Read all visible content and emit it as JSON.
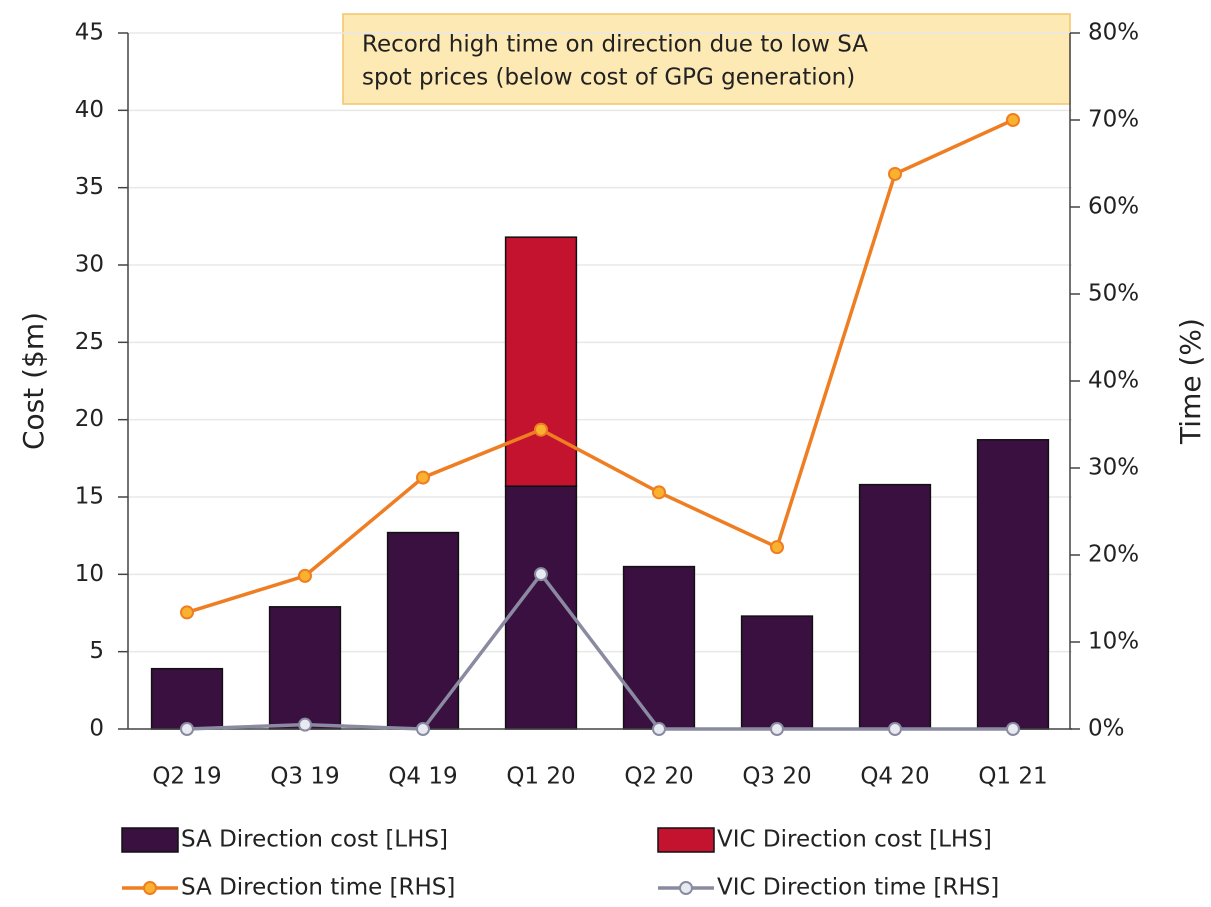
{
  "chart_data": {
    "type": "combo",
    "annotation": {
      "lines": [
        "Record high time on direction due to low SA",
        "spot prices (below cost of GPG generation)"
      ]
    },
    "y_label": "Cost ($m)",
    "y2_label": "Time (%)",
    "categories": [
      "Q2 19",
      "Q3 19",
      "Q4 19",
      "Q1 20",
      "Q2 20",
      "Q3 20",
      "Q4 20",
      "Q1 21"
    ],
    "stacked": true,
    "series": [
      {
        "name": "SA Direction cost [LHS]",
        "type": "bar",
        "color": "#3a1040",
        "values": [
          3.9,
          7.9,
          12.7,
          15.7,
          10.5,
          7.3,
          15.8,
          18.7
        ]
      },
      {
        "name": "VIC Direction cost [LHS]",
        "type": "bar",
        "color": "#c3132e",
        "values": [
          0,
          0,
          0,
          16.1,
          0,
          0,
          0,
          0
        ]
      },
      {
        "name": "SA Direction time [RHS]",
        "type": "line",
        "axis": "y2",
        "color": "#ef7d22",
        "marker_color": "#f9b230",
        "values": [
          13.4,
          17.6,
          28.9,
          34.4,
          27.2,
          20.9,
          63.8,
          70.0
        ]
      },
      {
        "name": "VIC Direction time [RHS]",
        "type": "line",
        "axis": "y2",
        "color": "#8a8aa0",
        "marker_color": "#e8eaf2",
        "values": [
          0,
          0.5,
          0,
          17.8,
          0,
          0,
          0,
          0
        ]
      }
    ],
    "ylim": [
      0,
      45
    ],
    "yticks": [
      0,
      5,
      10,
      15,
      20,
      25,
      30,
      35,
      40,
      45
    ],
    "y2lim": [
      0,
      80
    ],
    "y2ticks": [
      {
        "value": 0,
        "label": "0%"
      },
      {
        "value": 10,
        "label": "10%"
      },
      {
        "value": 20,
        "label": "20%"
      },
      {
        "value": 30,
        "label": "30%"
      },
      {
        "value": 40,
        "label": "40%"
      },
      {
        "value": 50,
        "label": "50%"
      },
      {
        "value": 60,
        "label": "60%"
      },
      {
        "value": 70,
        "label": "70%"
      },
      {
        "value": 80,
        "label": "80%"
      }
    ],
    "grid": true
  }
}
